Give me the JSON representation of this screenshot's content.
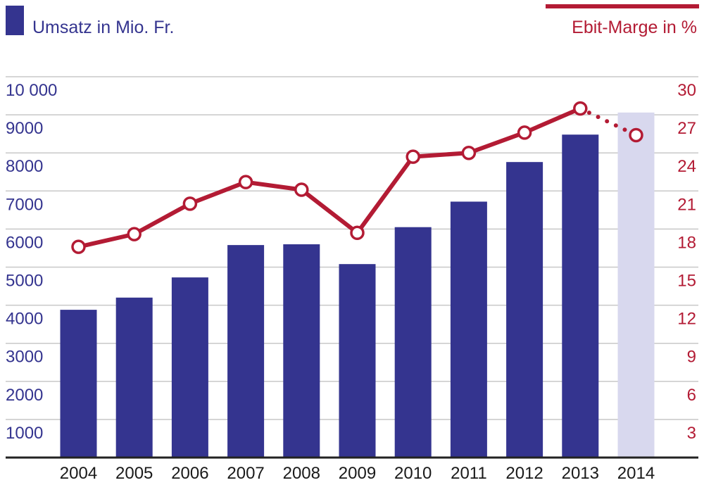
{
  "chart_data": {
    "type": "bar+line",
    "categories": [
      "2004",
      "2005",
      "2006",
      "2007",
      "2008",
      "2009",
      "2010",
      "2011",
      "2012",
      "2013",
      "2014"
    ],
    "series": [
      {
        "name": "Umsatz in Mio. Fr.",
        "type": "bar",
        "axis": "left",
        "values": [
          3880,
          4200,
          4730,
          5580,
          5600,
          5080,
          6050,
          6720,
          7760,
          8480,
          9060
        ],
        "projected": [
          false,
          false,
          false,
          false,
          false,
          false,
          false,
          false,
          false,
          false,
          true
        ]
      },
      {
        "name": "Ebit-Marge in %",
        "type": "line",
        "axis": "right",
        "values": [
          16.6,
          17.6,
          20.0,
          21.7,
          21.1,
          17.7,
          23.7,
          24.0,
          25.6,
          27.5,
          25.4
        ],
        "projected": [
          false,
          false,
          false,
          false,
          false,
          false,
          false,
          false,
          false,
          false,
          true
        ]
      }
    ],
    "y_left": {
      "ylim": [
        0,
        10000
      ],
      "ticks": [
        1000,
        2000,
        3000,
        4000,
        5000,
        6000,
        7000,
        8000,
        9000,
        10000
      ],
      "tick_labels": [
        "1000",
        "2000",
        "3000",
        "4000",
        "5000",
        "6000",
        "7000",
        "8000",
        "9000",
        "10 000"
      ]
    },
    "y_right": {
      "ylim": [
        0,
        30
      ],
      "ticks": [
        3,
        6,
        9,
        12,
        15,
        18,
        21,
        24,
        27,
        30
      ],
      "tick_labels": [
        "3",
        "6",
        "9",
        "12",
        "15",
        "18",
        "21",
        "24",
        "27",
        "30"
      ]
    },
    "legend": {
      "left": "Umsatz in Mio. Fr.",
      "right": "Ebit-Marge in %"
    },
    "grid": true,
    "colors": {
      "bar": "#34348f",
      "bar_projected": "#d8d8ee",
      "line": "#b31b34",
      "grid": "#c8c8c8",
      "axis": "#222222"
    }
  }
}
